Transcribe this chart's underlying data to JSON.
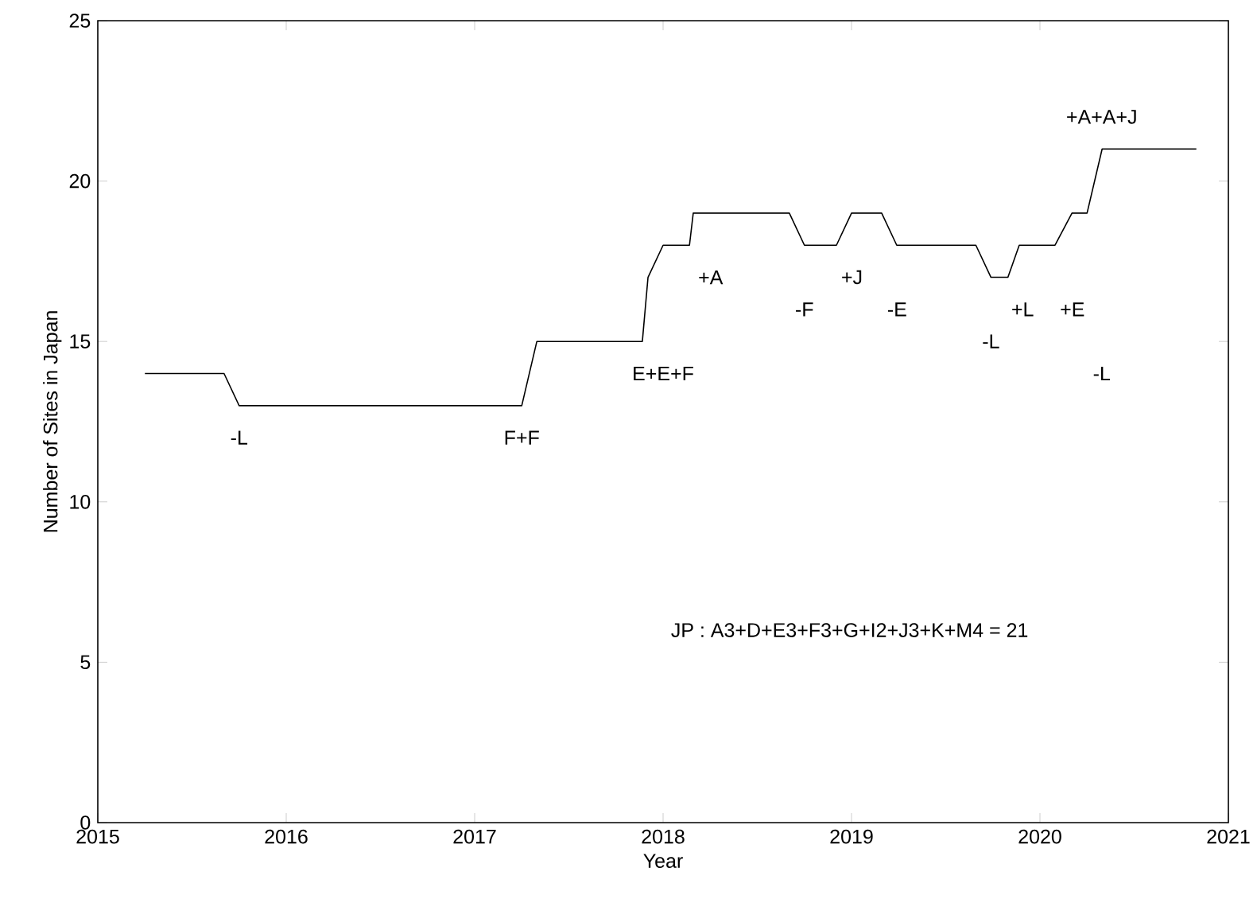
{
  "chart_data": {
    "type": "line",
    "xlabel": "Year",
    "ylabel": "Number of Sites in Japan",
    "x": [
      2015.25,
      2015.67,
      2015.75,
      2017.25,
      2017.33,
      2017.89,
      2017.92,
      2018.0,
      2018.14,
      2018.16,
      2018.67,
      2018.75,
      2018.92,
      2019.0,
      2019.16,
      2019.24,
      2019.66,
      2019.74,
      2019.83,
      2019.89,
      2020.08,
      2020.17,
      2020.25,
      2020.33,
      2020.83
    ],
    "series": [
      {
        "color": "#000000",
        "values": [
          14,
          14,
          13,
          13,
          15,
          15,
          17,
          18,
          18,
          19,
          19,
          18,
          18,
          19,
          19,
          18,
          18,
          17,
          17,
          18,
          18,
          19,
          19,
          21,
          21
        ]
      }
    ],
    "xlim": [
      2015,
      2021
    ],
    "ylim": [
      0,
      25
    ],
    "xticks": [
      2015,
      2016,
      2017,
      2018,
      2019,
      2020,
      2021
    ],
    "yticks": [
      0,
      5,
      10,
      15,
      20,
      25
    ],
    "marker": "none",
    "line_style": "solid",
    "annotations": [
      "-L",
      "F+F",
      "E+E+F",
      "+A",
      "-F",
      "+J",
      "-E",
      "-L",
      "+L",
      "+E",
      "-L",
      "+A+A+J",
      "JP : A3+D+E3+F3+G+I2+J3+K+M4 = 21"
    ]
  }
}
